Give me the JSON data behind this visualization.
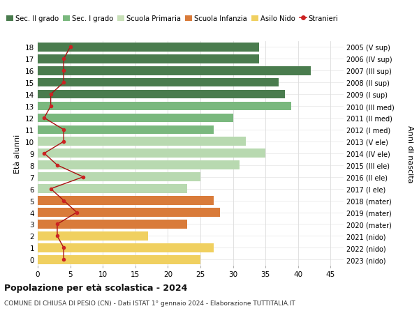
{
  "ages": [
    18,
    17,
    16,
    15,
    14,
    13,
    12,
    11,
    10,
    9,
    8,
    7,
    6,
    5,
    4,
    3,
    2,
    1,
    0
  ],
  "labels_right": [
    "2005 (V sup)",
    "2006 (IV sup)",
    "2007 (III sup)",
    "2008 (II sup)",
    "2009 (I sup)",
    "2010 (III med)",
    "2011 (II med)",
    "2012 (I med)",
    "2013 (V ele)",
    "2014 (IV ele)",
    "2015 (III ele)",
    "2016 (II ele)",
    "2017 (I ele)",
    "2018 (mater)",
    "2019 (mater)",
    "2020 (mater)",
    "2021 (nido)",
    "2022 (nido)",
    "2023 (nido)"
  ],
  "bar_values": [
    34,
    34,
    42,
    37,
    38,
    39,
    30,
    27,
    32,
    35,
    31,
    25,
    23,
    27,
    28,
    23,
    17,
    27,
    25
  ],
  "bar_colors": [
    "#4a7c4e",
    "#4a7c4e",
    "#4a7c4e",
    "#4a7c4e",
    "#4a7c4e",
    "#7ab87e",
    "#7ab87e",
    "#7ab87e",
    "#b8d9b0",
    "#b8d9b0",
    "#b8d9b0",
    "#b8d9b0",
    "#b8d9b0",
    "#d97b3a",
    "#d97b3a",
    "#d97b3a",
    "#f0d060",
    "#f0d060",
    "#f0d060"
  ],
  "stranieri_values": [
    5,
    4,
    4,
    4,
    2,
    2,
    1,
    4,
    4,
    1,
    3,
    7,
    2,
    4,
    6,
    3,
    3,
    4,
    4
  ],
  "title_bold": "Popolazione per età scolastica - 2024",
  "title_sub": "COMUNE DI CHIUSA DI PESIO (CN) - Dati ISTAT 1° gennaio 2024 - Elaborazione TUTTITALIA.IT",
  "ylabel_left": "Età alunni",
  "ylabel_right": "Anni di nascita",
  "legend_labels": [
    "Sec. II grado",
    "Sec. I grado",
    "Scuola Primaria",
    "Scuola Infanzia",
    "Asilo Nido",
    "Stranieri"
  ],
  "legend_colors": [
    "#4a7c4e",
    "#7ab87e",
    "#c8e0b8",
    "#d97b3a",
    "#f0d060",
    "#cc2222"
  ],
  "xlim": [
    0,
    47
  ],
  "ylim": [
    -0.5,
    18.5
  ],
  "xticks": [
    0,
    5,
    10,
    15,
    20,
    25,
    30,
    35,
    40,
    45
  ],
  "bg_color": "#ffffff",
  "grid_color": "#dddddd",
  "bar_height": 0.75
}
